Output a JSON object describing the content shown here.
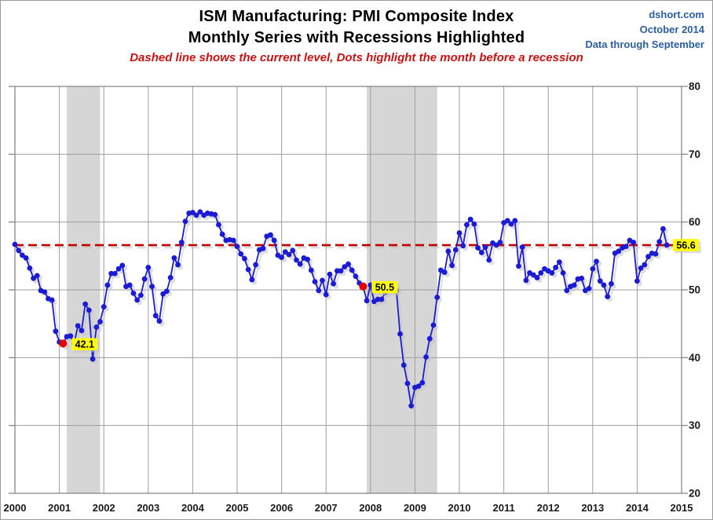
{
  "header": {
    "title_line1": "ISM Manufacturing: PMI Composite Index",
    "title_line2": "Monthly Series with Recessions Highlighted",
    "subtitle": "Dashed line shows the current level, Dots highlight the month before a recession",
    "source": {
      "site": "dshort.com",
      "date": "October 2014",
      "note": "Data through September"
    }
  },
  "colors": {
    "line_blue": "#1b1bd3",
    "dot_red": "#e60000",
    "dashed_red": "#c00000",
    "recession_band": "#d6d6d6",
    "gridline": "#9e9e9e",
    "plot_border": "#7f7f7f",
    "annotation_bg": "#ffff00",
    "annotation_text": "#000000",
    "shadow": "#c3c3c3",
    "source_text": "#2a5fa0",
    "subtitle_text": "#cc1111",
    "axis_text": "#1a1a1a"
  },
  "chart_data": {
    "type": "line",
    "title": "ISM Manufacturing: PMI Composite Index",
    "subtitle": "Monthly Series with Recessions Highlighted",
    "x_start_month": "2000-01",
    "x_end_month": "2014-09",
    "x_axis_years": [
      2000,
      2001,
      2002,
      2003,
      2004,
      2005,
      2006,
      2007,
      2008,
      2009,
      2010,
      2011,
      2012,
      2013,
      2014,
      2015
    ],
    "y_ticks": [
      80,
      70,
      60,
      50,
      40,
      30,
      20
    ],
    "y_range": [
      20,
      80
    ],
    "grid": true,
    "legend": "none",
    "current_level": 56.6,
    "series": [
      {
        "name": "ISM Manufacturing PMI",
        "monthly_values": [
          56.7,
          55.8,
          55.1,
          54.7,
          53.2,
          51.7,
          52.1,
          49.9,
          49.7,
          48.7,
          48.5,
          43.9,
          42.3,
          42.1,
          43.1,
          43.2,
          42.1,
          44.7,
          44.0,
          47.9,
          47.0,
          39.8,
          44.5,
          45.3,
          47.5,
          50.7,
          52.4,
          52.4,
          53.1,
          53.6,
          50.5,
          50.7,
          49.5,
          48.5,
          49.2,
          51.6,
          53.3,
          50.5,
          46.2,
          45.4,
          49.4,
          49.8,
          51.8,
          54.7,
          53.7,
          57.0,
          60.1,
          61.3,
          61.4,
          61.0,
          61.5,
          61.0,
          61.3,
          61.2,
          61.1,
          59.6,
          58.2,
          57.3,
          57.4,
          57.3,
          56.4,
          55.3,
          54.6,
          53.0,
          51.5,
          53.7,
          55.9,
          56.1,
          57.9,
          58.1,
          57.3,
          55.1,
          54.8,
          55.6,
          55.2,
          55.8,
          54.4,
          53.8,
          54.7,
          54.5,
          52.9,
          51.2,
          49.9,
          51.4,
          49.3,
          52.3,
          50.9,
          52.8,
          52.8,
          53.4,
          53.8,
          52.9,
          52.0,
          51.0,
          50.5,
          48.4,
          50.7,
          48.3,
          48.6,
          48.6,
          49.6,
          50.2,
          50.0,
          49.9,
          43.5,
          38.9,
          36.2,
          32.9,
          35.6,
          35.8,
          36.3,
          40.1,
          42.8,
          44.8,
          48.9,
          52.9,
          52.6,
          55.7,
          53.6,
          55.9,
          58.4,
          56.5,
          59.6,
          60.4,
          59.7,
          56.2,
          55.5,
          56.3,
          54.4,
          56.9,
          56.6,
          57.0,
          59.9,
          60.2,
          59.7,
          60.2,
          53.5,
          56.3,
          51.4,
          52.5,
          52.2,
          51.8,
          52.5,
          53.1,
          52.8,
          52.5,
          53.3,
          54.1,
          52.5,
          49.9,
          50.5,
          50.7,
          51.6,
          51.7,
          49.9,
          50.2,
          53.1,
          54.2,
          51.3,
          50.7,
          49.0,
          50.9,
          55.4,
          55.7,
          56.2,
          56.4,
          57.3,
          57.0,
          51.3,
          53.2,
          53.7,
          54.9,
          55.4,
          55.3,
          57.1,
          59.0,
          56.6
        ]
      }
    ],
    "recessions": [
      {
        "start": "2001-03",
        "end": "2001-11"
      },
      {
        "start": "2007-12",
        "end": "2009-06"
      }
    ],
    "pre_recession_dots": [
      {
        "month": "2001-02",
        "value": 42.1
      },
      {
        "month": "2007-11",
        "value": 50.5
      }
    ],
    "annotations": [
      {
        "text": "42.1",
        "anchor_month": "2001-02",
        "anchor_value": 42.1,
        "placement": "right-of-dot"
      },
      {
        "text": "50.5",
        "anchor_month": "2007-11",
        "anchor_value": 50.5,
        "placement": "right-of-dot"
      },
      {
        "text": "56.6",
        "anchor_value": 56.6,
        "placement": "right-axis"
      }
    ]
  }
}
